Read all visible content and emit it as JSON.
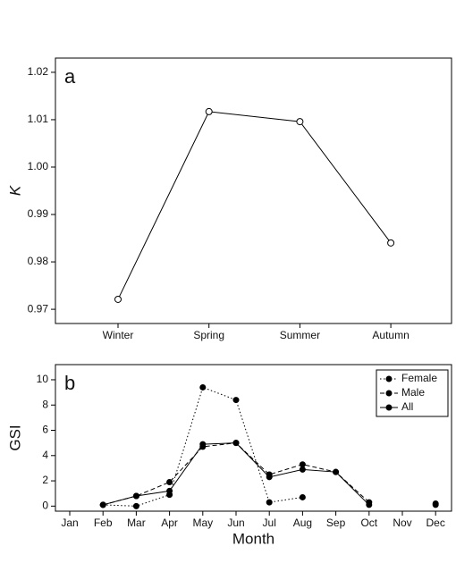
{
  "chart_data": [
    {
      "type": "line",
      "panel_label": "a",
      "y_label": "K",
      "categories": [
        "Winter",
        "Spring",
        "Summer",
        "Autumn"
      ],
      "series": [
        {
          "color": "#000000",
          "marker": "open",
          "dash": "solid",
          "values": [
            0.9721,
            1.0117,
            1.0096,
            0.984
          ]
        }
      ],
      "ylim": [
        0.967,
        1.023
      ],
      "yticks": [
        0.97,
        0.98,
        0.99,
        {
          "value": 1.0,
          "label": "1.00"
        },
        1.01,
        1.02
      ]
    },
    {
      "type": "line",
      "panel_label": "b",
      "y_label": "GSI",
      "x_label": "Month",
      "categories": [
        "Jan",
        "Feb",
        "Mar",
        "Apr",
        "May",
        "Jun",
        "Jul",
        "Aug",
        "Sep",
        "Oct",
        "Nov",
        "Dec"
      ],
      "series": [
        {
          "name": "Female",
          "color": "#000000",
          "marker": "filled",
          "dash": "dotted",
          "values": [
            null,
            0.1,
            0,
            0.9,
            9.4,
            8.4,
            0.3,
            0.7,
            null,
            null,
            null,
            null
          ]
        },
        {
          "name": "Male",
          "color": "#000000",
          "marker": "filled",
          "dash": "dashed",
          "values": [
            null,
            0.1,
            0.8,
            1.9,
            4.7,
            5.0,
            2.5,
            3.3,
            2.7,
            0.3,
            null,
            0.2
          ]
        },
        {
          "name": "All",
          "color": "#000000",
          "marker": "filled",
          "dash": "solid",
          "values": [
            null,
            0.1,
            0.8,
            1.2,
            4.9,
            5.0,
            2.3,
            2.9,
            2.7,
            0.1,
            null,
            0.1
          ]
        }
      ],
      "ylim": [
        -0.4,
        11.2
      ],
      "yticks": [
        0,
        2,
        4,
        6,
        8,
        10
      ],
      "legend": "top-right"
    }
  ]
}
